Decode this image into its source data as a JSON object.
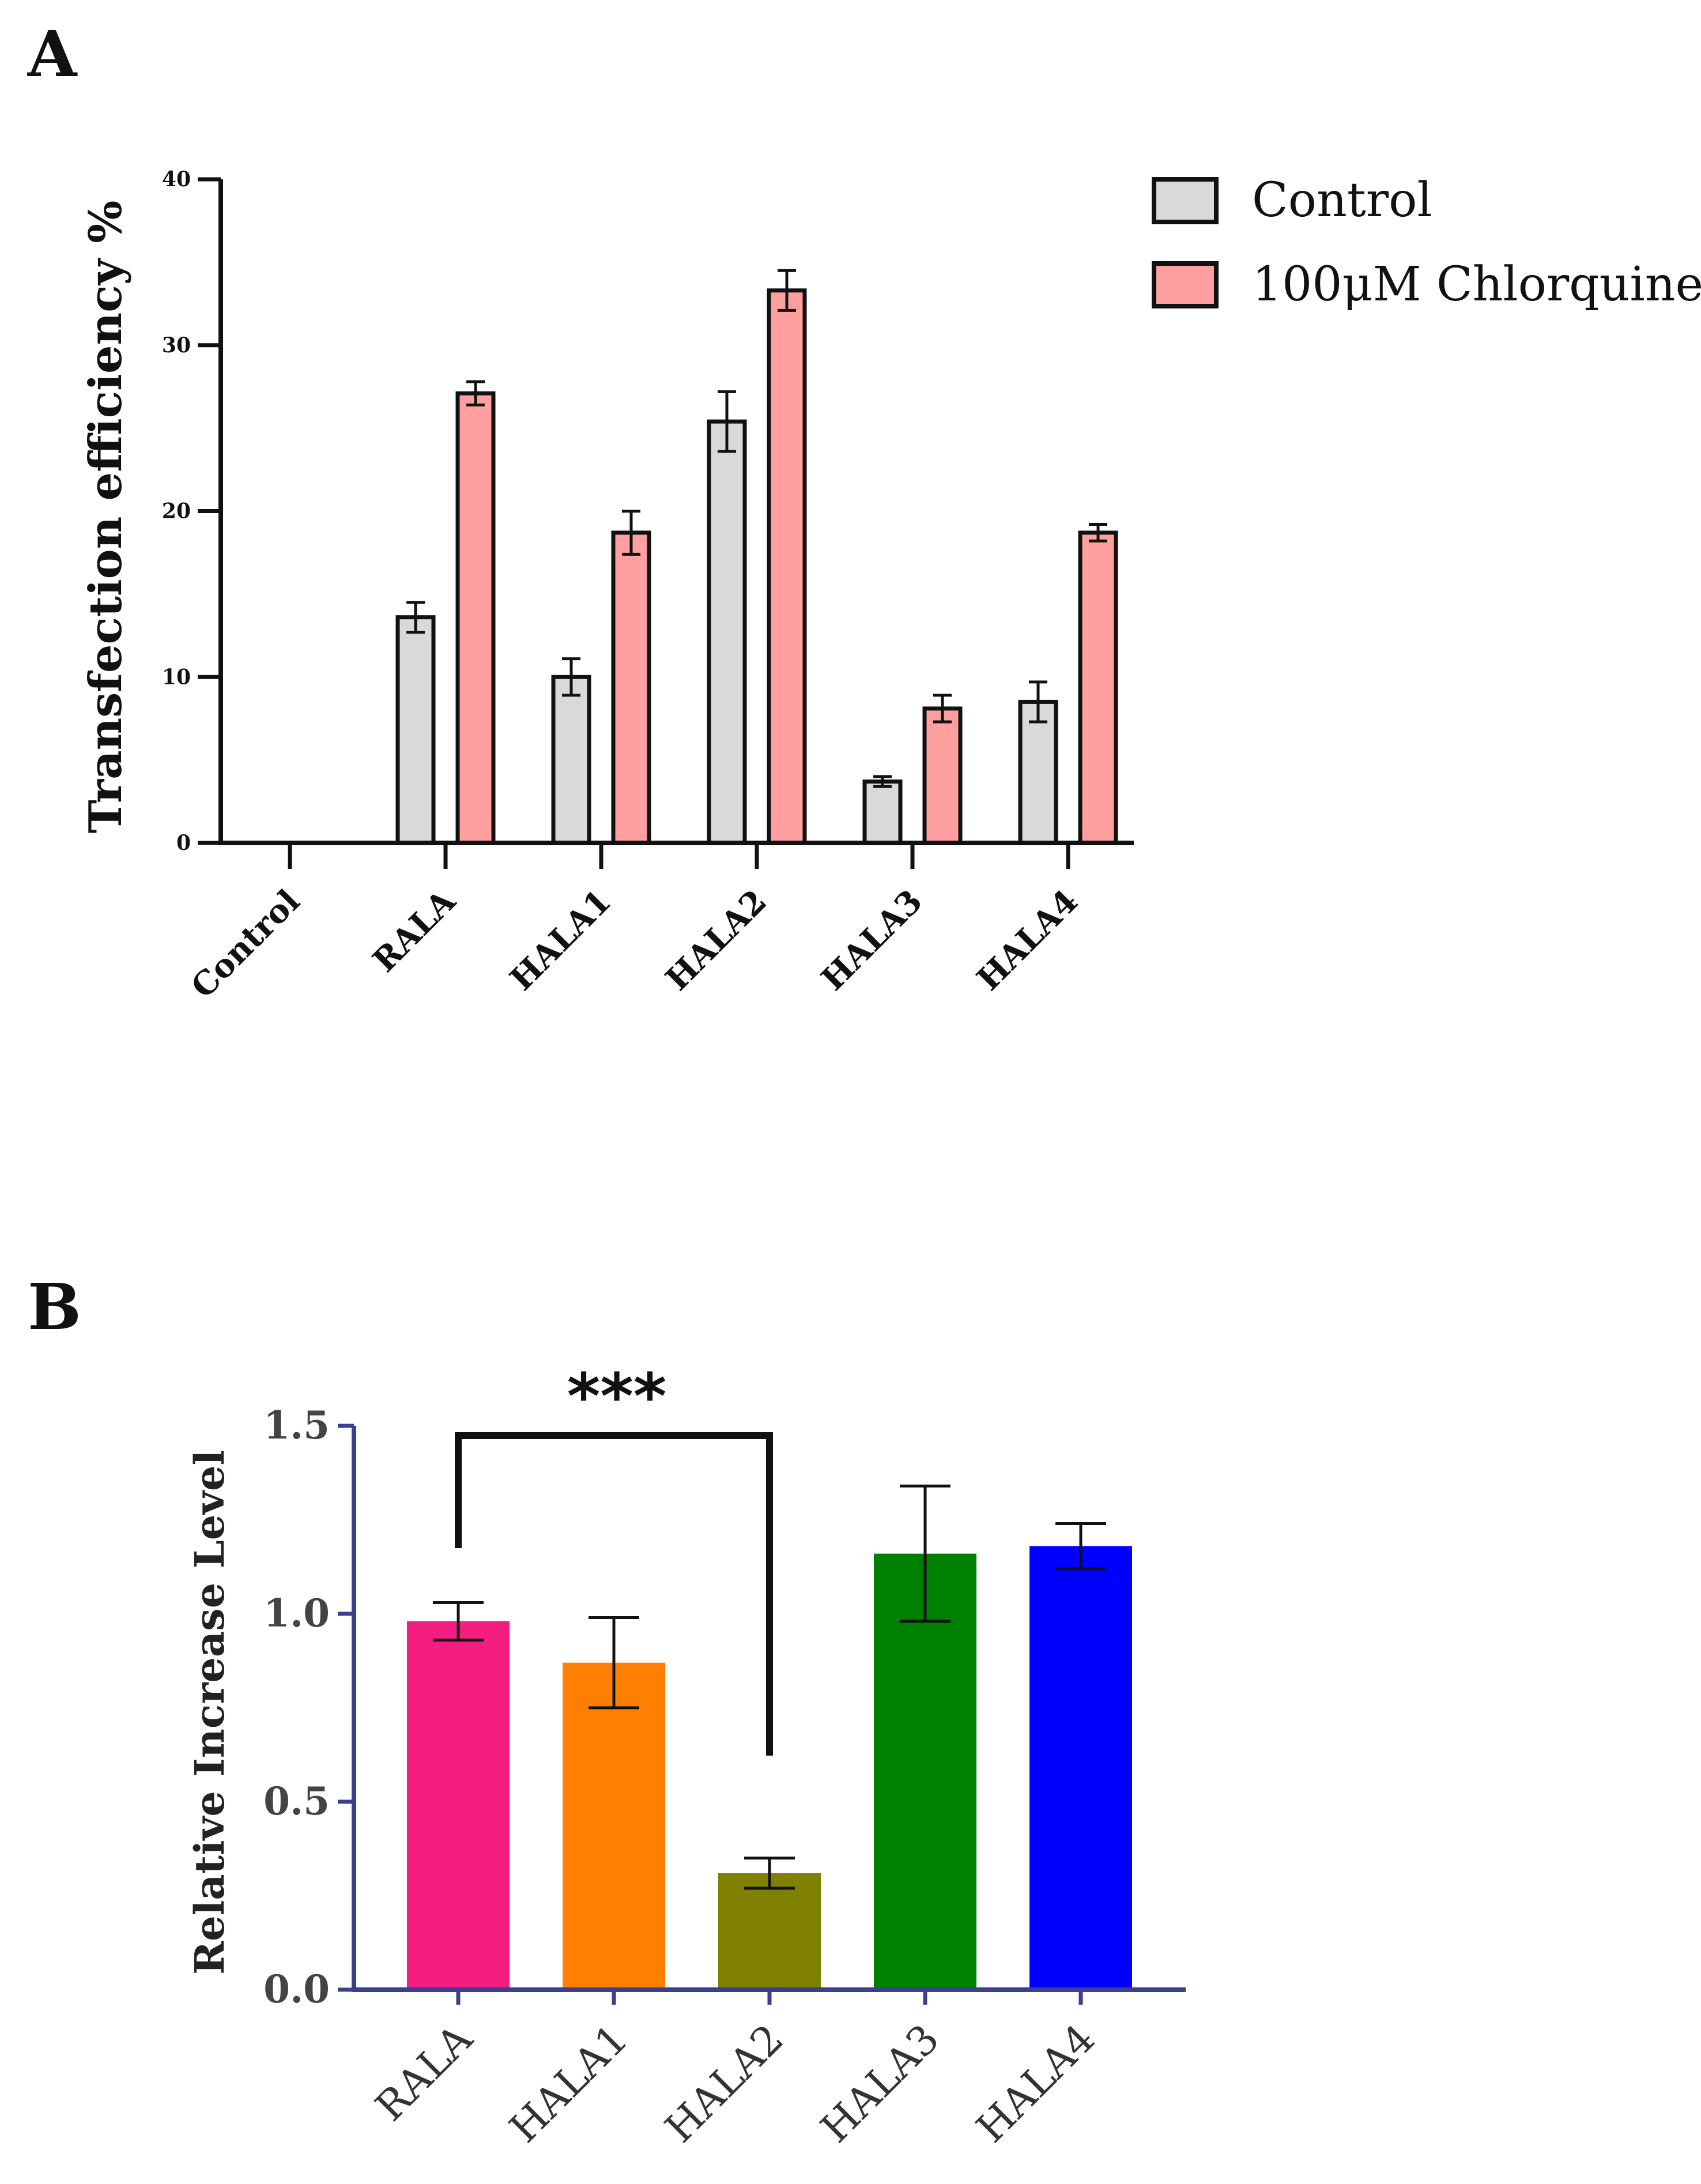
{
  "chart_data": [
    {
      "panel": "A",
      "type": "bar",
      "title": "",
      "xlabel": "",
      "ylabel": "Transfection efficiency %",
      "ylim": [
        0,
        40
      ],
      "yticks": [
        "0",
        "10",
        "20",
        "30",
        "40"
      ],
      "categories": [
        "Control",
        "RALA",
        "HALA1",
        "HALA2",
        "HALA3",
        "HALA4"
      ],
      "series": [
        {
          "name": "Control",
          "color": "#d9d9d9",
          "values": [
            0,
            13.6,
            10.0,
            25.4,
            3.7,
            8.5
          ],
          "errors": [
            0,
            0.9,
            1.1,
            1.8,
            0.3,
            1.2
          ]
        },
        {
          "name": "100μM Chlorquine",
          "color": "#ff9f9f",
          "values": [
            0,
            27.1,
            18.7,
            33.3,
            8.1,
            18.7
          ],
          "errors": [
            0,
            0.7,
            1.3,
            1.2,
            0.8,
            0.5
          ]
        }
      ],
      "legend_position": "top-right"
    },
    {
      "panel": "B",
      "type": "bar",
      "title": "",
      "xlabel": "",
      "ylabel": "Relative Increase Level",
      "ylim": [
        0,
        1.5
      ],
      "yticks": [
        "0.0",
        "0.5",
        "1.0",
        "1.5"
      ],
      "categories": [
        "RALA",
        "HALA1",
        "HALA2",
        "HALA3",
        "HALA4"
      ],
      "values": [
        0.98,
        0.87,
        0.31,
        1.16,
        1.18
      ],
      "errors": [
        0.05,
        0.12,
        0.04,
        0.18,
        0.06
      ],
      "colors": [
        "#f51c82",
        "#ff7f00",
        "#808000",
        "#008000",
        "#0000ff"
      ],
      "annotation": {
        "text": "***",
        "from": "RALA",
        "to": "HALA2"
      }
    }
  ]
}
